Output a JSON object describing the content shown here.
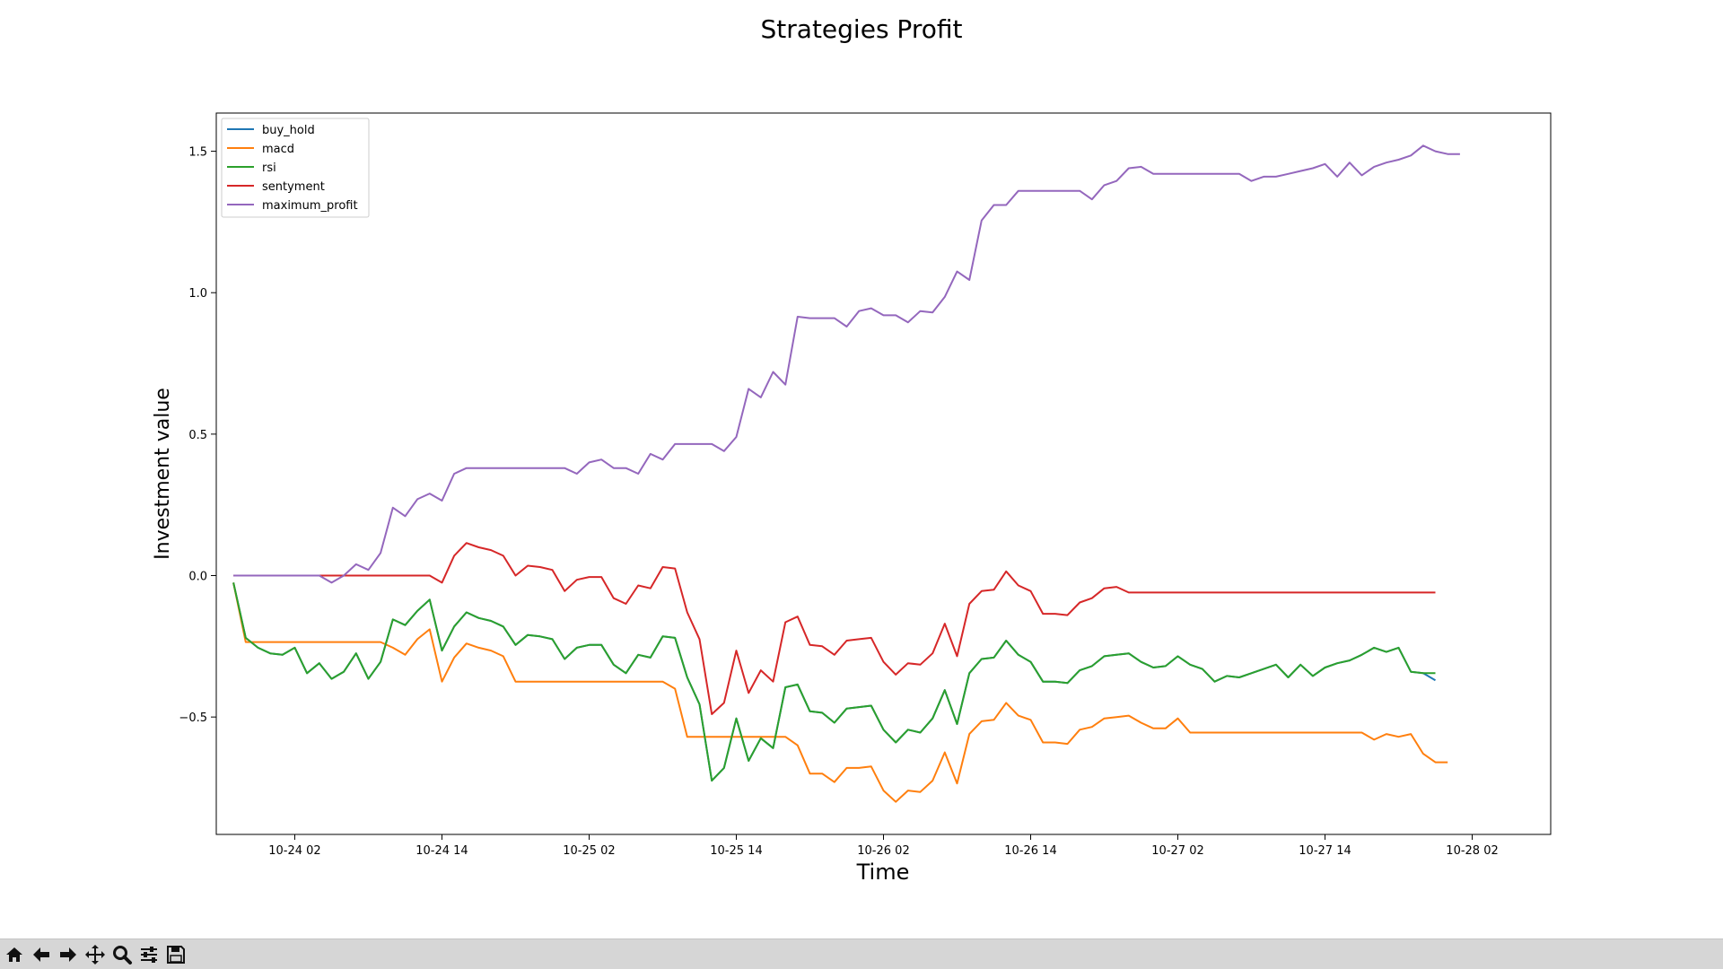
{
  "chart_data": {
    "type": "line",
    "title": "Strategies Profit",
    "xlabel": "Time",
    "ylabel": "Investment value",
    "x_ticks": [
      "10-24 02",
      "10-24 14",
      "10-25 02",
      "10-25 14",
      "10-26 02",
      "10-26 14",
      "10-27 02",
      "10-27 14",
      "10-28 02"
    ],
    "y_ticks": [
      "−0.5",
      "0.0",
      "0.5",
      "1.0",
      "1.5"
    ],
    "x_range_hours_from_10_24_00": [
      -4.4,
      104.4
    ],
    "ylim": [
      -0.915,
      1.635
    ],
    "grid": false,
    "legend_position": "top-left",
    "x_start": "10-23 21:00",
    "x_step_hours": 1,
    "series": [
      {
        "name": "buy_hold",
        "color": "#1f77b4",
        "values": [
          -0.025,
          -0.22,
          -0.255,
          -0.275,
          -0.28,
          -0.255,
          -0.345,
          -0.31,
          -0.365,
          -0.34,
          -0.275,
          -0.365,
          -0.305,
          -0.155,
          -0.175,
          -0.125,
          -0.085,
          -0.265,
          -0.18,
          -0.13,
          -0.15,
          -0.16,
          -0.18,
          -0.245,
          -0.21,
          -0.215,
          -0.225,
          -0.295,
          -0.255,
          -0.245,
          -0.245,
          -0.315,
          -0.345,
          -0.28,
          -0.29,
          -0.215,
          -0.22,
          -0.36,
          -0.455,
          -0.725,
          -0.68,
          -0.505,
          -0.655,
          -0.575,
          -0.61,
          -0.395,
          -0.385,
          -0.48,
          -0.485,
          -0.52,
          -0.47,
          -0.465,
          -0.46,
          -0.545,
          -0.59,
          -0.545,
          -0.555,
          -0.505,
          -0.405,
          -0.525,
          -0.345,
          -0.295,
          -0.29,
          -0.23,
          -0.28,
          -0.305,
          -0.375,
          -0.375,
          -0.38,
          -0.335,
          -0.32,
          -0.285,
          -0.28,
          -0.275,
          -0.305,
          -0.325,
          -0.32,
          -0.285,
          -0.315,
          -0.33,
          -0.375,
          -0.355,
          -0.36,
          -0.345,
          -0.33,
          -0.315,
          -0.36,
          -0.315,
          -0.355,
          -0.325,
          -0.31,
          -0.3,
          -0.28,
          -0.255,
          -0.27,
          -0.255,
          -0.34,
          -0.345,
          -0.37
        ]
      },
      {
        "name": "macd",
        "color": "#ff7f0e",
        "values": [
          -0.025,
          -0.235,
          -0.235,
          -0.235,
          -0.235,
          -0.235,
          -0.235,
          -0.235,
          -0.235,
          -0.235,
          -0.235,
          -0.235,
          -0.235,
          -0.255,
          -0.28,
          -0.225,
          -0.19,
          -0.375,
          -0.29,
          -0.24,
          -0.255,
          -0.265,
          -0.285,
          -0.375,
          -0.375,
          -0.375,
          -0.375,
          -0.375,
          -0.375,
          -0.375,
          -0.375,
          -0.375,
          -0.375,
          -0.375,
          -0.375,
          -0.375,
          -0.4,
          -0.57,
          -0.57,
          -0.57,
          -0.57,
          -0.57,
          -0.57,
          -0.57,
          -0.57,
          -0.57,
          -0.6,
          -0.7,
          -0.7,
          -0.73,
          -0.68,
          -0.68,
          -0.675,
          -0.76,
          -0.8,
          -0.76,
          -0.765,
          -0.725,
          -0.625,
          -0.735,
          -0.56,
          -0.515,
          -0.51,
          -0.45,
          -0.495,
          -0.51,
          -0.59,
          -0.59,
          -0.595,
          -0.545,
          -0.535,
          -0.505,
          -0.5,
          -0.495,
          -0.52,
          -0.54,
          -0.54,
          -0.505,
          -0.555,
          -0.555,
          -0.555,
          -0.555,
          -0.555,
          -0.555,
          -0.555,
          -0.555,
          -0.555,
          -0.555,
          -0.555,
          -0.555,
          -0.555,
          -0.555,
          -0.555,
          -0.58,
          -0.56,
          -0.57,
          -0.56,
          -0.63,
          -0.66,
          -0.66
        ]
      },
      {
        "name": "rsi",
        "color": "#2ca02c",
        "values": [
          -0.025,
          -0.22,
          -0.255,
          -0.275,
          -0.28,
          -0.255,
          -0.345,
          -0.31,
          -0.365,
          -0.34,
          -0.275,
          -0.365,
          -0.305,
          -0.155,
          -0.175,
          -0.125,
          -0.085,
          -0.265,
          -0.18,
          -0.13,
          -0.15,
          -0.16,
          -0.18,
          -0.245,
          -0.21,
          -0.215,
          -0.225,
          -0.295,
          -0.255,
          -0.245,
          -0.245,
          -0.315,
          -0.345,
          -0.28,
          -0.29,
          -0.215,
          -0.22,
          -0.36,
          -0.455,
          -0.725,
          -0.68,
          -0.505,
          -0.655,
          -0.575,
          -0.61,
          -0.395,
          -0.385,
          -0.48,
          -0.485,
          -0.52,
          -0.47,
          -0.465,
          -0.46,
          -0.545,
          -0.59,
          -0.545,
          -0.555,
          -0.505,
          -0.405,
          -0.525,
          -0.345,
          -0.295,
          -0.29,
          -0.23,
          -0.28,
          -0.305,
          -0.375,
          -0.375,
          -0.38,
          -0.335,
          -0.32,
          -0.285,
          -0.28,
          -0.275,
          -0.305,
          -0.325,
          -0.32,
          -0.285,
          -0.315,
          -0.33,
          -0.375,
          -0.355,
          -0.36,
          -0.345,
          -0.33,
          -0.315,
          -0.36,
          -0.315,
          -0.355,
          -0.325,
          -0.31,
          -0.3,
          -0.28,
          -0.255,
          -0.27,
          -0.255,
          -0.34,
          -0.345,
          -0.345
        ]
      },
      {
        "name": "sentyment",
        "color": "#d62728",
        "values": [
          0,
          0,
          0,
          0,
          0,
          0,
          0,
          0,
          0,
          0,
          0,
          0,
          0,
          0,
          0,
          0,
          0,
          -0.025,
          0.07,
          0.115,
          0.1,
          0.09,
          0.07,
          0,
          0.035,
          0.03,
          0.02,
          -0.055,
          -0.015,
          -0.005,
          -0.005,
          -0.08,
          -0.1,
          -0.035,
          -0.045,
          0.03,
          0.025,
          -0.13,
          -0.225,
          -0.49,
          -0.45,
          -0.265,
          -0.415,
          -0.335,
          -0.375,
          -0.165,
          -0.145,
          -0.245,
          -0.25,
          -0.28,
          -0.23,
          -0.225,
          -0.22,
          -0.305,
          -0.35,
          -0.31,
          -0.315,
          -0.275,
          -0.17,
          -0.285,
          -0.1,
          -0.055,
          -0.05,
          0.015,
          -0.035,
          -0.055,
          -0.135,
          -0.135,
          -0.14,
          -0.095,
          -0.08,
          -0.045,
          -0.04,
          -0.06,
          -0.06,
          -0.06,
          -0.06,
          -0.06,
          -0.06,
          -0.06,
          -0.06,
          -0.06,
          -0.06,
          -0.06,
          -0.06,
          -0.06,
          -0.06,
          -0.06,
          -0.06,
          -0.06,
          -0.06,
          -0.06,
          -0.06,
          -0.06,
          -0.06,
          -0.06,
          -0.06,
          -0.06,
          -0.06
        ]
      },
      {
        "name": "maximum_profit",
        "color": "#9467bd",
        "values": [
          0,
          0,
          0,
          0,
          0,
          0,
          0,
          0,
          -0.025,
          0,
          0.04,
          0.02,
          0.08,
          0.24,
          0.21,
          0.27,
          0.29,
          0.265,
          0.36,
          0.38,
          0.38,
          0.38,
          0.38,
          0.38,
          0.38,
          0.38,
          0.38,
          0.38,
          0.36,
          0.4,
          0.41,
          0.38,
          0.38,
          0.36,
          0.43,
          0.41,
          0.465,
          0.465,
          0.465,
          0.465,
          0.44,
          0.49,
          0.66,
          0.63,
          0.72,
          0.675,
          0.915,
          0.91,
          0.91,
          0.91,
          0.88,
          0.935,
          0.945,
          0.92,
          0.92,
          0.895,
          0.935,
          0.93,
          0.985,
          1.075,
          1.045,
          1.255,
          1.31,
          1.31,
          1.36,
          1.36,
          1.36,
          1.36,
          1.36,
          1.36,
          1.33,
          1.38,
          1.395,
          1.44,
          1.445,
          1.42,
          1.42,
          1.42,
          1.42,
          1.42,
          1.42,
          1.42,
          1.42,
          1.395,
          1.41,
          1.41,
          1.42,
          1.43,
          1.44,
          1.455,
          1.41,
          1.46,
          1.415,
          1.445,
          1.46,
          1.47,
          1.485,
          1.52,
          1.5,
          1.49,
          1.49
        ]
      }
    ]
  },
  "toolbar": {
    "buttons": [
      {
        "name": "home-button",
        "icon": "home-icon"
      },
      {
        "name": "back-button",
        "icon": "arrow-left-icon"
      },
      {
        "name": "forward-button",
        "icon": "arrow-right-icon"
      },
      {
        "name": "pan-button",
        "icon": "move-icon"
      },
      {
        "name": "zoom-button",
        "icon": "magnifier-icon"
      },
      {
        "name": "configure-subplots-button",
        "icon": "sliders-icon"
      },
      {
        "name": "save-button",
        "icon": "floppy-disk-icon"
      }
    ]
  }
}
